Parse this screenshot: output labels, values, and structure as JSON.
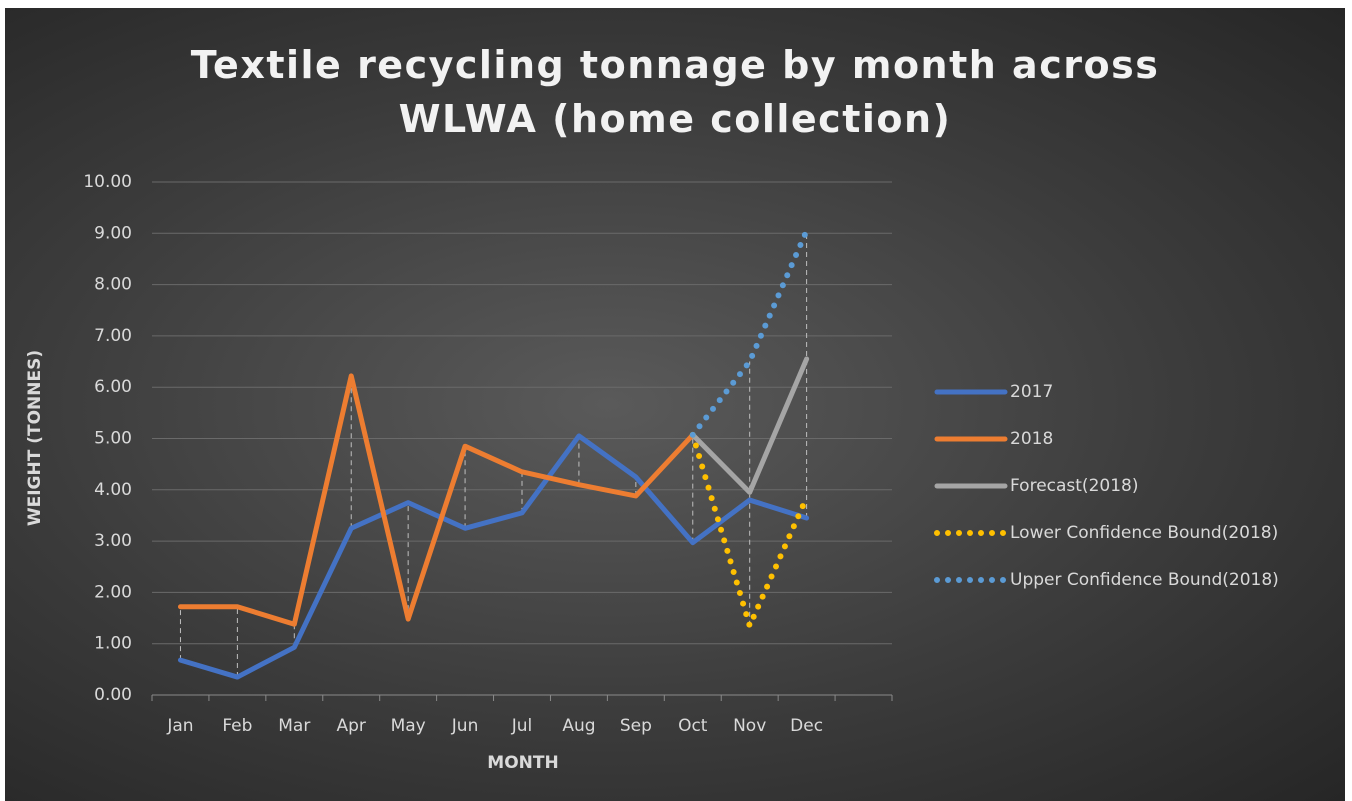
{
  "chart_data": {
    "type": "line",
    "title": "Textile recycling tonnage by month across WLWA (home collection)",
    "x_label": "MONTH",
    "y_label": "WEIGHT (TONNES)",
    "categories": [
      "Jan",
      "Feb",
      "Mar",
      "Apr",
      "May",
      "Jun",
      "Jul",
      "Aug",
      "Sep",
      "Oct",
      "Nov",
      "Dec",
      null
    ],
    "series": [
      {
        "name": "2017",
        "color": "#4472c4",
        "style": "solid",
        "values": [
          0.68,
          0.35,
          0.93,
          3.25,
          3.75,
          3.25,
          3.55,
          5.05,
          4.25,
          2.97,
          3.8,
          3.45,
          null
        ]
      },
      {
        "name": "2018",
        "color": "#ed7d31",
        "style": "solid",
        "values": [
          1.72,
          1.72,
          1.38,
          6.22,
          1.48,
          4.85,
          4.35,
          4.1,
          3.88,
          5.07,
          null,
          null,
          null
        ]
      },
      {
        "name": "Forecast(2018)",
        "color": "#a5a5a5",
        "style": "solid",
        "values": [
          null,
          null,
          null,
          null,
          null,
          null,
          null,
          null,
          null,
          5.07,
          3.95,
          6.55,
          null
        ]
      },
      {
        "name": "Lower Confidence Bound(2018)",
        "color": "#ffc000",
        "style": "dotted",
        "values": [
          null,
          null,
          null,
          null,
          null,
          null,
          null,
          null,
          null,
          5.07,
          1.35,
          3.85,
          null
        ]
      },
      {
        "name": "Upper Confidence Bound(2018)",
        "color": "#5b9bd5",
        "style": "dotted",
        "values": [
          null,
          null,
          null,
          null,
          null,
          null,
          null,
          null,
          null,
          5.07,
          6.5,
          9.05,
          null
        ]
      }
    ],
    "ylim": [
      0,
      10
    ],
    "yticks": [
      {
        "value": 0,
        "label": "0.00"
      },
      {
        "value": 1,
        "label": "1.00"
      },
      {
        "value": 2,
        "label": "2.00"
      },
      {
        "value": 3,
        "label": "3.00"
      },
      {
        "value": 4,
        "label": "4.00"
      },
      {
        "value": 5,
        "label": "5.00"
      },
      {
        "value": 6,
        "label": "6.00"
      },
      {
        "value": 7,
        "label": "7.00"
      },
      {
        "value": 8,
        "label": "8.00"
      },
      {
        "value": 9,
        "label": "9.00"
      },
      {
        "value": 10,
        "label": "10.00"
      }
    ],
    "grid": true,
    "drop_lines": true,
    "legend": "right"
  }
}
